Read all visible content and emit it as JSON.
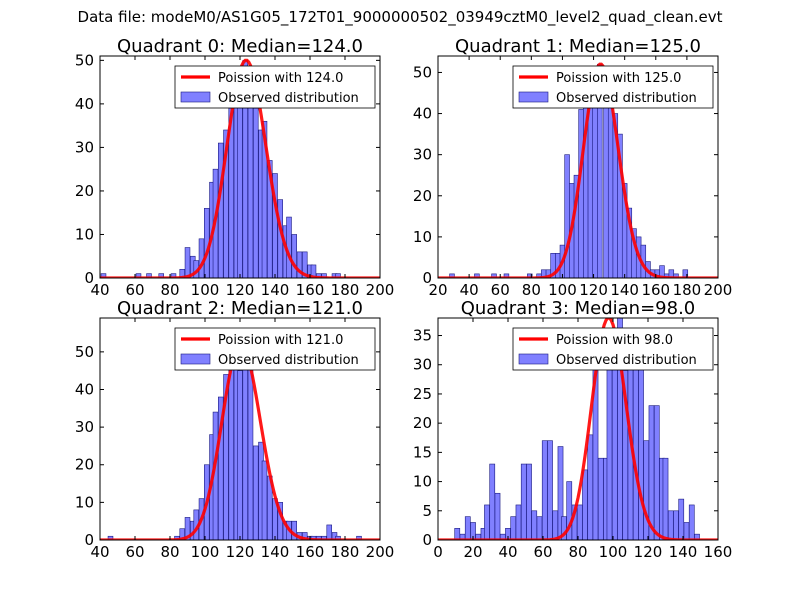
{
  "figure": {
    "suptitle": "Data file: modeM0/AS1G05_172T01_9000000502_03949cztM0_level2_quad_clean.evt"
  },
  "colors": {
    "bar_fill": "#8080ff",
    "bar_edge": "#1a1a80",
    "fit_line": "#ff0000"
  },
  "chart_data": [
    {
      "type": "bar",
      "title": "Quadrant 0: Median=124.0",
      "xlim": [
        40,
        200
      ],
      "ylim": [
        0,
        51
      ],
      "xticks": [
        40,
        60,
        80,
        100,
        120,
        140,
        160,
        180,
        200
      ],
      "yticks": [
        0,
        10,
        20,
        30,
        40,
        50
      ],
      "bin_width": 2.8,
      "legend": {
        "position": "top-right",
        "fit_label": "Poission with 124.0",
        "hist_label": "Observed distribution"
      },
      "fit": {
        "kind": "poisson",
        "mean": 124.0
      },
      "histogram": [
        [
          42,
          1
        ],
        [
          56,
          0
        ],
        [
          62,
          1
        ],
        [
          68,
          1
        ],
        [
          75,
          1
        ],
        [
          82,
          1
        ],
        [
          85,
          0
        ],
        [
          87,
          2
        ],
        [
          90,
          7
        ],
        [
          93,
          5
        ],
        [
          95,
          4
        ],
        [
          98,
          9
        ],
        [
          101,
          16
        ],
        [
          104,
          22
        ],
        [
          106,
          25
        ],
        [
          109,
          31
        ],
        [
          112,
          34
        ],
        [
          115,
          39
        ],
        [
          118,
          46
        ],
        [
          120,
          48
        ],
        [
          123,
          50
        ],
        [
          126,
          43
        ],
        [
          129,
          39
        ],
        [
          132,
          34
        ],
        [
          134,
          36
        ],
        [
          137,
          27
        ],
        [
          140,
          24
        ],
        [
          143,
          18
        ],
        [
          146,
          12
        ],
        [
          148,
          14
        ],
        [
          151,
          10
        ],
        [
          154,
          6
        ],
        [
          157,
          6
        ],
        [
          160,
          3
        ],
        [
          162,
          3
        ],
        [
          165,
          1
        ],
        [
          168,
          1
        ],
        [
          171,
          0
        ],
        [
          174,
          1
        ],
        [
          176,
          1
        ]
      ]
    },
    {
      "type": "bar",
      "title": "Quadrant 1: Median=125.0",
      "xlim": [
        20,
        200
      ],
      "ylim": [
        0,
        54
      ],
      "xticks": [
        20,
        40,
        60,
        80,
        100,
        120,
        140,
        160,
        180,
        200
      ],
      "yticks": [
        0,
        10,
        20,
        30,
        40,
        50
      ],
      "bin_width": 3.1,
      "legend": {
        "position": "top-right",
        "fit_label": "Poission with 125.0",
        "hist_label": "Observed distribution"
      },
      "fit": {
        "kind": "poisson",
        "mean": 125.0
      },
      "histogram": [
        [
          29,
          1
        ],
        [
          45,
          1
        ],
        [
          56,
          1
        ],
        [
          64,
          1
        ],
        [
          79,
          1
        ],
        [
          85,
          1
        ],
        [
          88,
          2
        ],
        [
          91,
          2
        ],
        [
          94,
          6
        ],
        [
          97,
          6
        ],
        [
          100,
          8
        ],
        [
          103,
          30
        ],
        [
          106,
          23
        ],
        [
          109,
          25
        ],
        [
          112,
          41
        ],
        [
          115,
          43
        ],
        [
          118,
          47
        ],
        [
          121,
          49
        ],
        [
          124,
          52
        ],
        [
          128,
          51
        ],
        [
          131,
          47
        ],
        [
          134,
          40
        ],
        [
          137,
          35
        ],
        [
          140,
          23
        ],
        [
          143,
          17
        ],
        [
          146,
          12
        ],
        [
          149,
          10
        ],
        [
          152,
          8
        ],
        [
          155,
          4
        ],
        [
          158,
          2
        ],
        [
          161,
          2
        ],
        [
          164,
          3
        ],
        [
          167,
          1
        ],
        [
          170,
          2
        ],
        [
          173,
          1
        ],
        [
          179,
          2
        ]
      ]
    },
    {
      "type": "bar",
      "title": "Quadrant 2: Median=121.0",
      "xlim": [
        40,
        200
      ],
      "ylim": [
        0,
        59
      ],
      "xticks": [
        40,
        60,
        80,
        100,
        120,
        140,
        160,
        180,
        200
      ],
      "yticks": [
        0,
        10,
        20,
        30,
        40,
        50
      ],
      "bin_width": 2.8,
      "legend": {
        "position": "top-right",
        "fit_label": "Poission with 121.0",
        "hist_label": "Observed distribution"
      },
      "fit": {
        "kind": "poisson",
        "mean": 121.0
      },
      "histogram": [
        [
          46,
          1
        ],
        [
          84,
          1
        ],
        [
          87,
          3
        ],
        [
          90,
          6
        ],
        [
          93,
          5
        ],
        [
          95,
          8
        ],
        [
          98,
          11
        ],
        [
          101,
          20
        ],
        [
          104,
          28
        ],
        [
          106,
          34
        ],
        [
          109,
          38
        ],
        [
          112,
          44
        ],
        [
          115,
          47
        ],
        [
          118,
          52
        ],
        [
          120,
          45
        ],
        [
          123,
          50
        ],
        [
          126,
          47
        ],
        [
          129,
          25
        ],
        [
          132,
          26
        ],
        [
          134,
          21
        ],
        [
          137,
          17
        ],
        [
          140,
          11
        ],
        [
          143,
          10
        ],
        [
          146,
          5
        ],
        [
          148,
          5
        ],
        [
          151,
          5
        ],
        [
          154,
          2
        ],
        [
          157,
          2
        ],
        [
          160,
          1
        ],
        [
          162,
          1
        ],
        [
          165,
          1
        ],
        [
          168,
          1
        ],
        [
          171,
          4
        ],
        [
          174,
          2
        ],
        [
          176,
          1
        ],
        [
          188,
          1
        ]
      ]
    },
    {
      "type": "bar",
      "title": "Quadrant 3: Median=98.0",
      "xlim": [
        0,
        160
      ],
      "ylim": [
        0,
        38
      ],
      "xticks": [
        0,
        20,
        40,
        60,
        80,
        100,
        120,
        140,
        160
      ],
      "yticks": [
        0,
        5,
        10,
        15,
        20,
        25,
        30,
        35
      ],
      "bin_width": 2.9,
      "legend": {
        "position": "top-right",
        "fit_label": "Poission with 98.0",
        "hist_label": "Observed distribution"
      },
      "fit": {
        "kind": "poisson",
        "mean": 98.0
      },
      "histogram": [
        [
          11,
          2
        ],
        [
          14,
          1
        ],
        [
          17,
          4
        ],
        [
          20,
          3
        ],
        [
          23,
          1
        ],
        [
          26,
          2
        ],
        [
          28,
          6
        ],
        [
          31,
          13
        ],
        [
          34,
          8
        ],
        [
          37,
          1
        ],
        [
          40,
          2
        ],
        [
          43,
          4
        ],
        [
          46,
          6
        ],
        [
          49,
          13
        ],
        [
          52,
          13
        ],
        [
          55,
          5
        ],
        [
          58,
          4
        ],
        [
          61,
          17
        ],
        [
          64,
          17
        ],
        [
          67,
          5
        ],
        [
          70,
          16
        ],
        [
          72,
          4
        ],
        [
          75,
          10
        ],
        [
          78,
          6
        ],
        [
          81,
          6
        ],
        [
          84,
          12
        ],
        [
          87,
          18
        ],
        [
          90,
          32
        ],
        [
          93,
          14
        ],
        [
          96,
          14
        ],
        [
          98,
          32
        ],
        [
          101,
          36
        ],
        [
          104,
          38
        ],
        [
          107,
          29
        ],
        [
          110,
          33
        ],
        [
          113,
          31
        ],
        [
          116,
          31
        ],
        [
          119,
          17
        ],
        [
          122,
          23
        ],
        [
          125,
          23
        ],
        [
          128,
          14
        ],
        [
          130,
          14
        ],
        [
          133,
          5
        ],
        [
          136,
          5
        ],
        [
          139,
          7
        ],
        [
          142,
          3
        ],
        [
          145,
          6
        ],
        [
          148,
          1
        ]
      ]
    }
  ]
}
